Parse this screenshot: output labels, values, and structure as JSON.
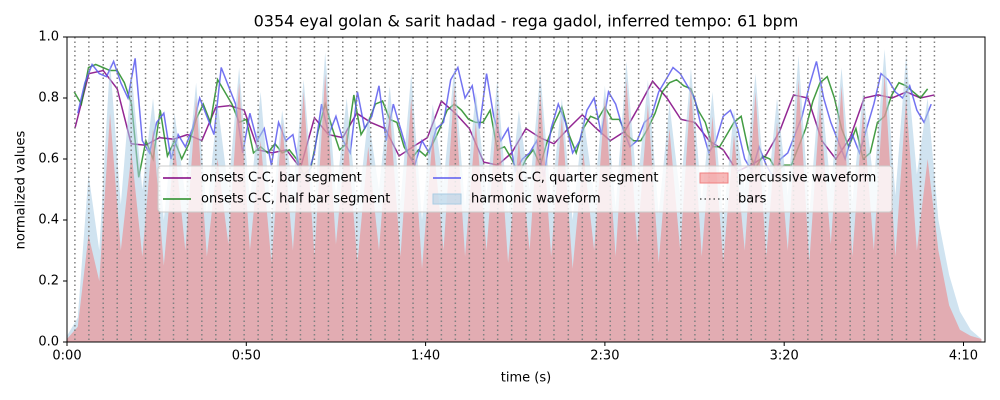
{
  "chart_data": {
    "type": "line",
    "title": "0354 eyal golan & sarit hadad - rega gadol, inferred tempo: 61 bpm",
    "xlabel": "time (s)",
    "ylabel": "normalized values",
    "xlim": [
      0,
      256
    ],
    "ylim": [
      0,
      1
    ],
    "xticks": [
      {
        "value": 0,
        "label": "0:00"
      },
      {
        "value": 50,
        "label": "0:50"
      },
      {
        "value": 100,
        "label": "1:40"
      },
      {
        "value": 150,
        "label": "2:30"
      },
      {
        "value": 200,
        "label": "3:20"
      },
      {
        "value": 250,
        "label": "4:10"
      }
    ],
    "yticks": [
      {
        "value": 0,
        "label": "0.0"
      },
      {
        "value": 0.2,
        "label": "0.2"
      },
      {
        "value": 0.4,
        "label": "0.4"
      },
      {
        "value": 0.6,
        "label": "0.6"
      },
      {
        "value": 0.8,
        "label": "0.8"
      },
      {
        "value": 1,
        "label": "1.0"
      }
    ],
    "legend": "center",
    "series": [
      {
        "name": "onsets C-C, bar segment",
        "color": "#800080",
        "kind": "line",
        "x": [
          2.2,
          6.1,
          10.1,
          14.0,
          17.9,
          21.9,
          25.8,
          29.7,
          33.6,
          37.6,
          41.5,
          45.4,
          49.4,
          53.3,
          57.2,
          61.2,
          65.1,
          69.0,
          72.9,
          76.9,
          80.8,
          84.7,
          88.7,
          92.6,
          96.5,
          100.5,
          104.4,
          108.3,
          112.2,
          116.2,
          120.1,
          124.0,
          128.0,
          131.9,
          135.8,
          139.8,
          143.7,
          147.6,
          151.5,
          155.5,
          159.4,
          163.3,
          167.3,
          171.2,
          175.1,
          179.1,
          183.0,
          186.9,
          190.8,
          194.8,
          198.7,
          202.6,
          206.6,
          210.5,
          214.4,
          218.4,
          222.3,
          226.2,
          230.1,
          234.1,
          238.0,
          241.9
        ],
        "values": [
          0.7,
          0.88,
          0.89,
          0.83,
          0.65,
          0.645,
          0.67,
          0.665,
          0.68,
          0.66,
          0.77,
          0.775,
          0.76,
          0.63,
          0.62,
          0.63,
          0.57,
          0.735,
          0.68,
          0.67,
          0.75,
          0.72,
          0.7,
          0.61,
          0.64,
          0.67,
          0.79,
          0.75,
          0.7,
          0.59,
          0.58,
          0.62,
          0.7,
          0.67,
          0.65,
          0.7,
          0.745,
          0.7,
          0.66,
          0.69,
          0.77,
          0.855,
          0.8,
          0.73,
          0.72,
          0.66,
          0.63,
          0.56,
          0.58,
          0.61,
          0.69,
          0.81,
          0.8,
          0.66,
          0.6,
          0.67,
          0.8,
          0.81,
          0.8,
          0.82,
          0.8,
          0.81
        ]
      },
      {
        "name": "onsets C-C, half bar segment",
        "color": "#228b22",
        "kind": "line",
        "x": [
          2,
          4,
          6,
          8,
          10,
          12,
          14,
          16,
          18,
          20,
          22,
          24,
          26,
          28,
          30,
          32,
          34,
          36,
          38,
          40,
          42,
          44,
          46,
          48,
          50,
          52,
          54,
          56,
          58,
          60,
          62,
          64,
          66,
          68,
          70,
          72,
          74,
          76,
          78,
          80,
          82,
          84,
          86,
          88,
          90,
          92,
          94,
          96,
          98,
          100,
          102,
          104,
          106,
          108,
          110,
          112,
          114,
          116,
          118,
          120,
          122,
          124,
          126,
          128,
          130,
          132,
          134,
          136,
          138,
          140,
          142,
          144,
          146,
          148,
          150,
          152,
          154,
          156,
          158,
          160,
          162,
          164,
          166,
          168,
          170,
          172,
          174,
          176,
          178,
          180,
          182,
          184,
          186,
          188,
          190,
          192,
          194,
          196,
          198,
          200,
          202,
          204,
          206,
          208,
          210,
          212,
          214,
          216,
          218,
          220,
          222,
          224,
          226,
          228,
          230,
          232,
          234,
          236,
          238,
          240
        ],
        "values": [
          0.82,
          0.78,
          0.9,
          0.91,
          0.9,
          0.89,
          0.89,
          0.85,
          0.78,
          0.54,
          0.66,
          0.6,
          0.76,
          0.61,
          0.66,
          0.6,
          0.65,
          0.73,
          0.78,
          0.72,
          0.86,
          0.82,
          0.78,
          0.72,
          0.73,
          0.62,
          0.64,
          0.62,
          0.65,
          0.62,
          0.63,
          0.6,
          0.55,
          0.57,
          0.69,
          0.78,
          0.7,
          0.63,
          0.65,
          0.81,
          0.68,
          0.72,
          0.78,
          0.79,
          0.73,
          0.72,
          0.64,
          0.6,
          0.63,
          0.61,
          0.65,
          0.7,
          0.76,
          0.78,
          0.76,
          0.73,
          0.72,
          0.72,
          0.76,
          0.63,
          0.64,
          0.6,
          0.55,
          0.6,
          0.63,
          0.58,
          0.66,
          0.72,
          0.77,
          0.68,
          0.62,
          0.7,
          0.74,
          0.73,
          0.77,
          0.73,
          0.73,
          0.68,
          0.66,
          0.66,
          0.7,
          0.75,
          0.82,
          0.85,
          0.86,
          0.84,
          0.83,
          0.76,
          0.72,
          0.64,
          0.64,
          0.68,
          0.72,
          0.74,
          0.63,
          0.57,
          0.61,
          0.6,
          0.56,
          0.58,
          0.58,
          0.64,
          0.7,
          0.79,
          0.85,
          0.87,
          0.8,
          0.7,
          0.64,
          0.7,
          0.6,
          0.62,
          0.72,
          0.74,
          0.81,
          0.85,
          0.84,
          0.82,
          0.8,
          0.83
        ]
      },
      {
        "name": "onsets C-C, quarter segment",
        "color": "#5b5bef",
        "kind": "line",
        "x": [
          3,
          5,
          7,
          9,
          11,
          13,
          15,
          17,
          19,
          21,
          23,
          25,
          27,
          29,
          31,
          33,
          35,
          37,
          39,
          41,
          43,
          45,
          47,
          49,
          51,
          53,
          55,
          57,
          59,
          61,
          63,
          65,
          67,
          69,
          71,
          73,
          75,
          77,
          79,
          81,
          83,
          85,
          87,
          89,
          91,
          93,
          95,
          97,
          99,
          101,
          103,
          105,
          107,
          109,
          111,
          113,
          115,
          117,
          119,
          121,
          123,
          125,
          127,
          129,
          131,
          133,
          135,
          137,
          139,
          141,
          143,
          145,
          147,
          149,
          151,
          153,
          155,
          157,
          159,
          161,
          163,
          165,
          167,
          169,
          171,
          173,
          175,
          177,
          179,
          181,
          183,
          185,
          187,
          189,
          191,
          193,
          195,
          197,
          199,
          201,
          203,
          205,
          207,
          209,
          211,
          213,
          215,
          217,
          219,
          221,
          223,
          225,
          227,
          229,
          231,
          233,
          235,
          237,
          239,
          241
        ],
        "values": [
          0.75,
          0.85,
          0.91,
          0.88,
          0.87,
          0.92,
          0.85,
          0.8,
          0.93,
          0.66,
          0.62,
          0.72,
          0.75,
          0.6,
          0.68,
          0.64,
          0.7,
          0.8,
          0.74,
          0.68,
          0.9,
          0.84,
          0.78,
          0.62,
          0.75,
          0.66,
          0.7,
          0.58,
          0.72,
          0.66,
          0.68,
          0.56,
          0.54,
          0.62,
          0.78,
          0.68,
          0.74,
          0.66,
          0.62,
          0.82,
          0.7,
          0.74,
          0.84,
          0.66,
          0.78,
          0.7,
          0.62,
          0.58,
          0.66,
          0.62,
          0.7,
          0.72,
          0.86,
          0.9,
          0.8,
          0.84,
          0.7,
          0.88,
          0.74,
          0.66,
          0.7,
          0.56,
          0.6,
          0.62,
          0.66,
          0.54,
          0.7,
          0.78,
          0.72,
          0.62,
          0.66,
          0.76,
          0.8,
          0.68,
          0.82,
          0.78,
          0.7,
          0.64,
          0.66,
          0.72,
          0.74,
          0.82,
          0.86,
          0.9,
          0.88,
          0.84,
          0.8,
          0.7,
          0.62,
          0.66,
          0.74,
          0.76,
          0.7,
          0.6,
          0.56,
          0.64,
          0.58,
          0.54,
          0.6,
          0.62,
          0.68,
          0.74,
          0.84,
          0.92,
          0.8,
          0.72,
          0.66,
          0.6,
          0.68,
          0.62,
          0.7,
          0.78,
          0.88,
          0.86,
          0.82,
          0.8,
          0.84,
          0.76,
          0.72,
          0.78
        ]
      },
      {
        "name": "harmonic waveform",
        "color": "#a9cce3",
        "kind": "area",
        "x": [
          0,
          3,
          6,
          9,
          12,
          15,
          18,
          21,
          24,
          27,
          30,
          33,
          36,
          39,
          42,
          45,
          48,
          51,
          54,
          57,
          60,
          63,
          66,
          69,
          72,
          75,
          78,
          81,
          84,
          87,
          90,
          93,
          96,
          99,
          102,
          105,
          108,
          111,
          114,
          117,
          120,
          123,
          126,
          129,
          132,
          135,
          138,
          141,
          144,
          147,
          150,
          153,
          156,
          159,
          162,
          165,
          168,
          171,
          174,
          177,
          180,
          183,
          186,
          189,
          192,
          195,
          198,
          201,
          204,
          207,
          210,
          213,
          216,
          219,
          222,
          225,
          228,
          231,
          234,
          237,
          240,
          243,
          246,
          249,
          252,
          255
        ],
        "values": [
          0.02,
          0.08,
          0.55,
          0.3,
          0.92,
          0.45,
          0.88,
          0.5,
          0.8,
          0.4,
          0.75,
          0.48,
          0.85,
          0.42,
          0.78,
          0.5,
          0.9,
          0.46,
          0.82,
          0.4,
          0.76,
          0.5,
          0.86,
          0.44,
          0.95,
          0.48,
          0.8,
          0.42,
          0.74,
          0.5,
          0.84,
          0.46,
          0.88,
          0.4,
          0.78,
          0.52,
          0.9,
          0.44,
          0.82,
          0.48,
          0.86,
          0.42,
          0.76,
          0.5,
          0.88,
          0.46,
          0.8,
          0.4,
          0.74,
          0.48,
          0.84,
          0.44,
          0.92,
          0.5,
          0.86,
          0.42,
          0.78,
          0.48,
          0.9,
          0.46,
          0.82,
          0.4,
          0.76,
          0.5,
          0.88,
          0.44,
          0.8,
          0.48,
          0.94,
          0.42,
          0.86,
          0.5,
          0.9,
          0.46,
          0.82,
          0.52,
          0.96,
          0.48,
          0.94,
          0.55,
          0.8,
          0.4,
          0.22,
          0.1,
          0.04,
          0.01
        ]
      },
      {
        "name": "percussive waveform",
        "color": "#f08080",
        "kind": "area",
        "x": [
          0,
          3,
          6,
          9,
          12,
          15,
          18,
          21,
          24,
          27,
          30,
          33,
          36,
          39,
          42,
          45,
          48,
          51,
          54,
          57,
          60,
          63,
          66,
          69,
          72,
          75,
          78,
          81,
          84,
          87,
          90,
          93,
          96,
          99,
          102,
          105,
          108,
          111,
          114,
          117,
          120,
          123,
          126,
          129,
          132,
          135,
          138,
          141,
          144,
          147,
          150,
          153,
          156,
          159,
          162,
          165,
          168,
          171,
          174,
          177,
          180,
          183,
          186,
          189,
          192,
          195,
          198,
          201,
          204,
          207,
          210,
          213,
          216,
          219,
          222,
          225,
          228,
          231,
          234,
          237,
          240,
          243,
          246,
          249,
          252,
          255
        ],
        "values": [
          0.01,
          0.05,
          0.35,
          0.2,
          0.75,
          0.3,
          0.62,
          0.28,
          0.7,
          0.25,
          0.65,
          0.3,
          0.8,
          0.28,
          0.6,
          0.32,
          0.85,
          0.3,
          0.66,
          0.26,
          0.72,
          0.3,
          0.82,
          0.28,
          0.88,
          0.32,
          0.7,
          0.26,
          0.64,
          0.3,
          0.76,
          0.28,
          0.8,
          0.24,
          0.68,
          0.3,
          0.84,
          0.28,
          0.72,
          0.3,
          0.78,
          0.26,
          0.66,
          0.3,
          0.82,
          0.28,
          0.74,
          0.24,
          0.62,
          0.3,
          0.8,
          0.28,
          0.86,
          0.32,
          0.78,
          0.26,
          0.7,
          0.3,
          0.84,
          0.28,
          0.74,
          0.26,
          0.68,
          0.3,
          0.82,
          0.28,
          0.72,
          0.3,
          0.86,
          0.26,
          0.78,
          0.32,
          0.84,
          0.28,
          0.76,
          0.3,
          0.88,
          0.28,
          0.8,
          0.3,
          0.6,
          0.3,
          0.12,
          0.04,
          0.02,
          0.01
        ]
      },
      {
        "name": "bars",
        "color": "#808080",
        "kind": "vlines",
        "x": [
          2.2,
          6.1,
          10.1,
          14.0,
          17.9,
          21.9,
          25.8,
          29.7,
          33.6,
          37.6,
          41.5,
          45.4,
          49.4,
          53.3,
          57.2,
          61.2,
          65.1,
          69.0,
          72.9,
          76.9,
          80.8,
          84.7,
          88.7,
          92.6,
          96.5,
          100.5,
          104.4,
          108.3,
          112.2,
          116.2,
          120.1,
          124.0,
          128.0,
          131.9,
          135.8,
          139.8,
          143.7,
          147.6,
          151.5,
          155.5,
          159.4,
          163.3,
          167.3,
          171.2,
          175.1,
          179.1,
          183.0,
          186.9,
          190.8,
          194.8,
          198.7,
          202.6,
          206.6,
          210.5,
          214.4,
          218.4,
          222.3,
          226.2,
          230.1,
          234.1,
          238.0,
          241.9
        ]
      }
    ]
  }
}
